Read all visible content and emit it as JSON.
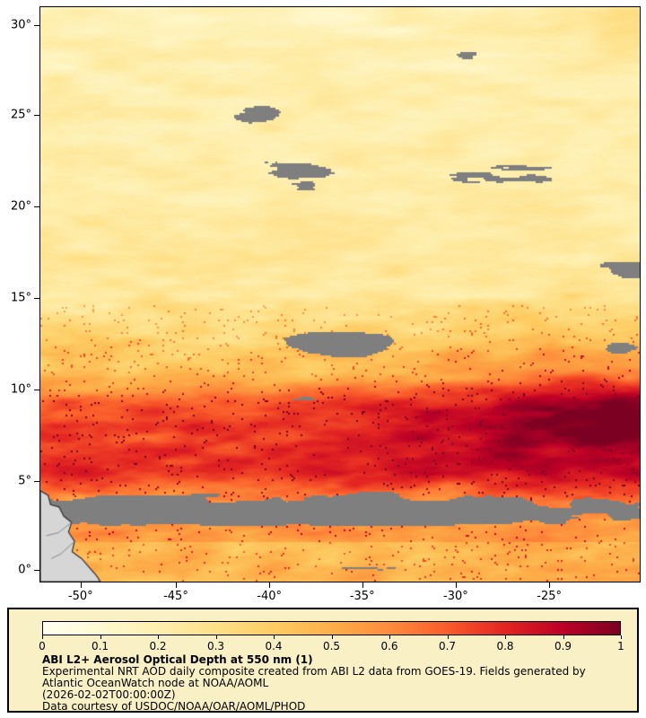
{
  "map": {
    "lat_ticks": [
      {
        "label": "30°",
        "pos": 0.031
      },
      {
        "label": "25°",
        "pos": 0.188
      },
      {
        "label": "20°",
        "pos": 0.347
      },
      {
        "label": "15°",
        "pos": 0.506
      },
      {
        "label": "10°",
        "pos": 0.666
      },
      {
        "label": "5°",
        "pos": 0.825
      },
      {
        "label": "0°",
        "pos": 0.98
      }
    ],
    "lon_ticks": [
      {
        "label": "-50°",
        "pos": 0.067
      },
      {
        "label": "-45°",
        "pos": 0.226
      },
      {
        "label": "-40°",
        "pos": 0.382
      },
      {
        "label": "-35°",
        "pos": 0.537
      },
      {
        "label": "-30°",
        "pos": 0.693
      },
      {
        "label": "-25°",
        "pos": 0.849
      }
    ]
  },
  "legend": {
    "colorbar_ticks": [
      "0",
      "0.1",
      "0.2",
      "0.3",
      "0.4",
      "0.5",
      "0.6",
      "0.7",
      "0.8",
      "0.9",
      "1"
    ],
    "title": "ABI L2+ Aerosol Optical Depth at 550 nm (1)",
    "description": "Experimental NRT AOD daily composite created from ABI L2 data from GOES-19. Fields generated by Atlantic OceanWatch node at NOAA/AOML",
    "timestamp": "(2026-02-02T00:00:00Z)",
    "credit": "Data courtesy of USDOC/NOAA/OAR/AOML/PHOD"
  },
  "colors": {
    "page_bg": "#ffffff",
    "legend_bg": "#faf0c6",
    "missing_data": "#7f7f7f",
    "land_fill": "#d6d6d6",
    "coastline": "#303030",
    "river": "#8a8a8a",
    "axis": "#000000",
    "colormap": [
      {
        "v": 0.0,
        "c": "#fffff0"
      },
      {
        "v": 0.1,
        "c": "#fff9d2"
      },
      {
        "v": 0.2,
        "c": "#feefae"
      },
      {
        "v": 0.3,
        "c": "#fee088"
      },
      {
        "v": 0.4,
        "c": "#fecc63"
      },
      {
        "v": 0.5,
        "c": "#fdae49"
      },
      {
        "v": 0.6,
        "c": "#fd8c3c"
      },
      {
        "v": 0.7,
        "c": "#fa5c2b"
      },
      {
        "v": 0.8,
        "c": "#e32522"
      },
      {
        "v": 0.9,
        "c": "#bd0026"
      },
      {
        "v": 1.0,
        "c": "#7c0022"
      }
    ]
  },
  "chart_data": {
    "type": "heatmap",
    "title": "ABI L2+ Aerosol Optical Depth at 550 nm (1)",
    "x_tick_labels": [
      "-50°",
      "-45°",
      "-40°",
      "-35°",
      "-30°",
      "-25°"
    ],
    "y_tick_labels": [
      "30°",
      "25°",
      "20°",
      "15°",
      "10°",
      "5°",
      "0°"
    ],
    "xlim": [
      -52.2,
      -20.1
    ],
    "ylim": [
      0,
      30.4
    ],
    "grid": false,
    "legend_position": "bottom",
    "colorbar": {
      "min": 0,
      "max": 1,
      "tick_labels": [
        "0",
        "0.1",
        "0.2",
        "0.3",
        "0.4",
        "0.5",
        "0.6",
        "0.7",
        "0.8",
        "0.9",
        "1"
      ]
    },
    "features": [
      "Pale yellow field (AOD ~0.1-0.3) over most of the northern area, 10°N-30°N",
      "Intense dust plume band (AOD 0.6-1.0) spanning the full width between ~5°N and ~10°N, darkest (AOD ~1.0) toward the southeast corner near -22° longitude",
      "Gray no-data/cloud-mask regions: large streaky patch around 20°N-24°N mid-longitudes, patch near 12°N-15°N in the center, streaks along the right edge near 15°N, and a broad ITCZ cloud band along 2°N-5°N",
      "Scattered dark-red speckles in the transition zone between the pale field and the dust band",
      "Light gray South American coast (land) in the bottom-left corner"
    ]
  }
}
